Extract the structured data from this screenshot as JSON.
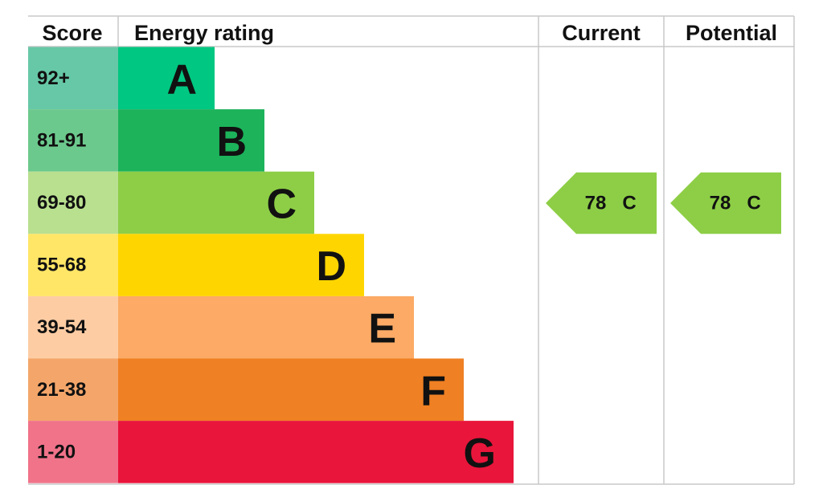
{
  "header": {
    "score": "Score",
    "energy_rating": "Energy rating",
    "current": "Current",
    "potential": "Potential"
  },
  "bands": [
    {
      "score": "92+",
      "letter": "A",
      "color": "#00c781",
      "score_color": "#66c8a6"
    },
    {
      "score": "81-91",
      "letter": "B",
      "color": "#1cb35a",
      "score_color": "#6cc98d"
    },
    {
      "score": "69-80",
      "letter": "C",
      "color": "#8dce46",
      "score_color": "#b9e08f"
    },
    {
      "score": "55-68",
      "letter": "D",
      "color": "#ffd500",
      "score_color": "#ffe666"
    },
    {
      "score": "39-54",
      "letter": "E",
      "color": "#fcaa65",
      "score_color": "#fdcca3"
    },
    {
      "score": "21-38",
      "letter": "F",
      "color": "#ef8023",
      "score_color": "#f4a66a"
    },
    {
      "score": "1-20",
      "letter": "G",
      "color": "#e9153b",
      "score_color": "#f0738a"
    }
  ],
  "current": {
    "score": "78",
    "band": "C"
  },
  "potential": {
    "score": "78",
    "band": "C"
  }
}
